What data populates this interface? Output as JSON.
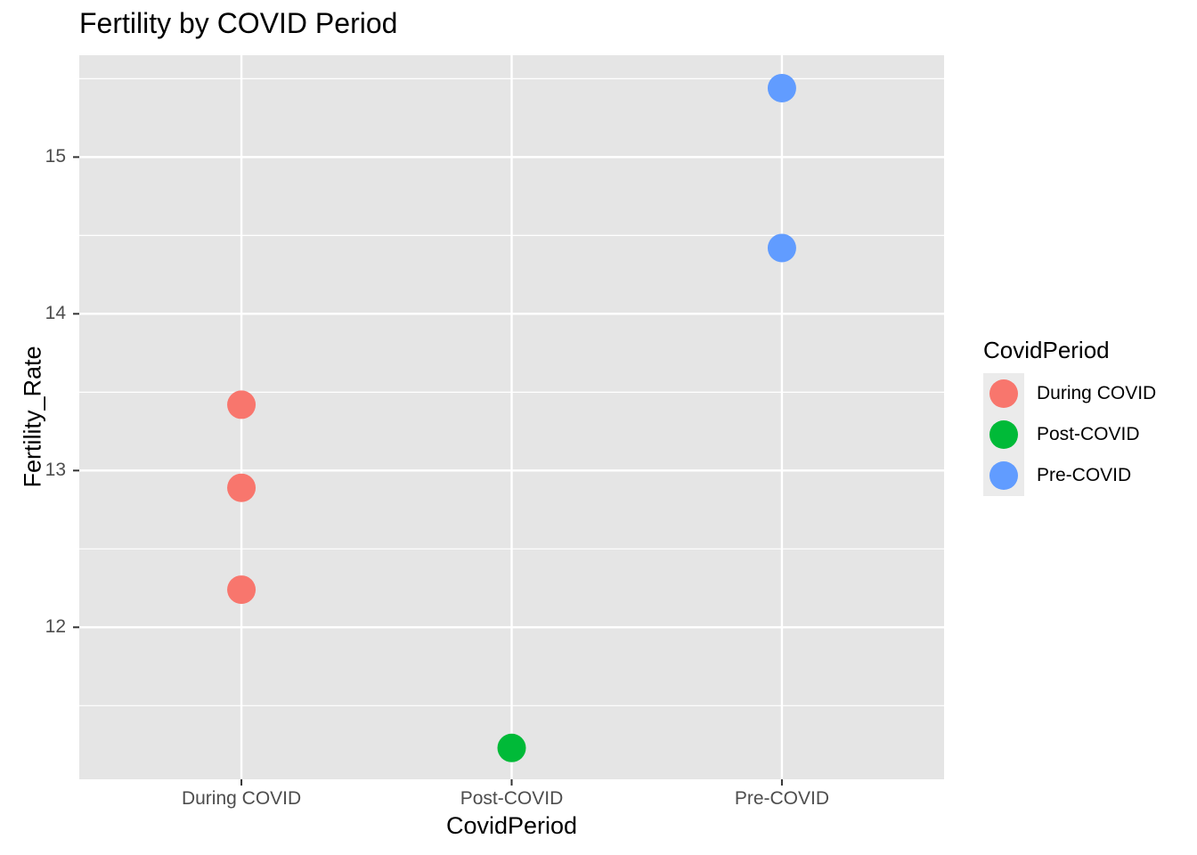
{
  "chart_data": {
    "type": "scatter",
    "title": "Fertility by COVID Period",
    "xlabel": "CovidPeriod",
    "ylabel": "Fertility_Rate",
    "categories": [
      "During COVID",
      "Post-COVID",
      "Pre-COVID"
    ],
    "ylim": [
      11.03,
      15.65
    ],
    "yticks": [
      "12",
      "13",
      "14",
      "15"
    ],
    "grid": true,
    "legend": {
      "title": "CovidPeriod",
      "placement": "right",
      "items": [
        {
          "label": "During COVID",
          "color": "#F8766D"
        },
        {
          "label": "Post-COVID",
          "color": "#00BA38"
        },
        {
          "label": "Pre-COVID",
          "color": "#619CFF"
        }
      ]
    },
    "series": [
      {
        "name": "During COVID",
        "color": "#F8766D",
        "points": [
          {
            "x": "During COVID",
            "y": 13.42
          },
          {
            "x": "During COVID",
            "y": 12.89
          },
          {
            "x": "During COVID",
            "y": 12.24
          }
        ]
      },
      {
        "name": "Post-COVID",
        "color": "#00BA38",
        "points": [
          {
            "x": "Post-COVID",
            "y": 11.23
          }
        ]
      },
      {
        "name": "Pre-COVID",
        "color": "#619CFF",
        "points": [
          {
            "x": "Pre-COVID",
            "y": 15.44
          },
          {
            "x": "Pre-COVID",
            "y": 14.42
          }
        ]
      }
    ]
  }
}
